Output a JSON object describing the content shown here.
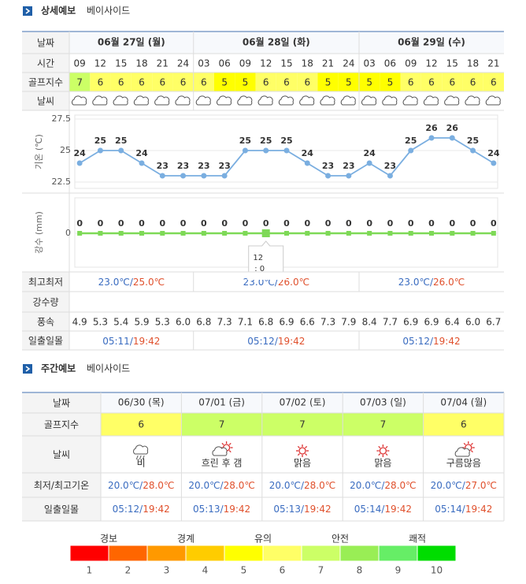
{
  "detail": {
    "title": "상세예보",
    "location": "베이사이드",
    "row_labels": {
      "date": "날짜",
      "time": "시간",
      "golf": "골프지수",
      "weather": "날씨",
      "minmax": "최고최저",
      "rain": "강수량",
      "wind": "풍속",
      "sun": "일출일몰"
    },
    "days": [
      {
        "date": "06월 27일 (월)",
        "times": [
          "09",
          "12",
          "15",
          "18",
          "21",
          "24"
        ],
        "golf": [
          7,
          6,
          6,
          6,
          6,
          6
        ],
        "wind": [
          "4.9",
          "5.3",
          "5.4",
          "5.9",
          "5.3",
          "6.0"
        ],
        "min": "23.0℃/",
        "max": "25.0℃",
        "rise": "05:11/",
        "set": "19:42"
      },
      {
        "date": "06월 28일 (화)",
        "times": [
          "03",
          "06",
          "09",
          "12",
          "15",
          "18",
          "21",
          "24"
        ],
        "golf": [
          6,
          5,
          5,
          6,
          6,
          6,
          5,
          5
        ],
        "wind": [
          "6.8",
          "7.3",
          "7.1",
          "6.8",
          "6.9",
          "6.6",
          "7.3",
          "7.9"
        ],
        "min": "23.0℃/",
        "max": "26.0℃",
        "rise": "05:12/",
        "set": "19:42"
      },
      {
        "date": "06월 29일 (수)",
        "times": [
          "03",
          "06",
          "09",
          "12",
          "15",
          "18",
          "21"
        ],
        "golf": [
          5,
          5,
          6,
          6,
          6,
          6,
          6
        ],
        "wind": [
          "8.4",
          "7.7",
          "6.9",
          "6.9",
          "6.4",
          "6.0",
          "6.7"
        ],
        "min": "23.0℃/",
        "max": "26.0℃",
        "rise": "05:12/",
        "set": "19:42"
      }
    ]
  },
  "chart_data": [
    {
      "type": "line",
      "y_label": "기온 (℃)",
      "ylim": [
        22.5,
        27.5
      ],
      "yticks": [
        22.5,
        25,
        27.5
      ],
      "color": "#7aaee0",
      "values": [
        24,
        25,
        25,
        24,
        23,
        23,
        23,
        23,
        25,
        25,
        25,
        24,
        23,
        23,
        24,
        23,
        25,
        26,
        26,
        25,
        24
      ]
    },
    {
      "type": "line",
      "y_label": "강수 (mm)",
      "ylim": [
        0,
        1
      ],
      "yticks": [
        0
      ],
      "color": "#7ed957",
      "values": [
        0,
        0,
        0,
        0,
        0,
        0,
        0,
        0,
        0,
        0,
        0,
        0,
        0,
        0,
        0,
        0,
        0,
        0,
        0,
        0,
        0
      ],
      "tooltip": {
        "label": "12",
        "text": ": 0"
      }
    }
  ],
  "weekly": {
    "title": "주간예보",
    "location": "베이사이드",
    "row_labels": {
      "date": "날짜",
      "golf": "골프지수",
      "weather": "날씨",
      "temp": "최저/최고기온",
      "sun": "일출일몰"
    },
    "days": [
      {
        "date": "06/30 (목)",
        "golf": 6,
        "weather": "비",
        "min": "20.0℃/",
        "max": "28.0℃",
        "rise": "05:12/",
        "set": "19:42"
      },
      {
        "date": "07/01 (금)",
        "golf": 7,
        "weather": "흐린 후 갬",
        "min": "20.0℃/",
        "max": "28.0℃",
        "rise": "05:13/",
        "set": "19:42"
      },
      {
        "date": "07/02 (토)",
        "golf": 7,
        "weather": "맑음",
        "min": "20.0℃/",
        "max": "28.0℃",
        "rise": "05:13/",
        "set": "19:42"
      },
      {
        "date": "07/03 (일)",
        "golf": 7,
        "weather": "맑음",
        "min": "20.0℃/",
        "max": "28.0℃",
        "rise": "05:14/",
        "set": "19:42"
      },
      {
        "date": "07/04 (월)",
        "golf": 6,
        "weather": "구름많음",
        "min": "20.0℃/",
        "max": "27.0℃",
        "rise": "05:14/",
        "set": "19:42"
      }
    ]
  },
  "legend": {
    "groups": [
      "경보",
      "경계",
      "유의",
      "안전",
      "쾌적"
    ],
    "levels": [
      {
        "value": 1,
        "color": "#ff0000"
      },
      {
        "value": 2,
        "color": "#ff6600"
      },
      {
        "value": 3,
        "color": "#ff9900"
      },
      {
        "value": 4,
        "color": "#ffcc00"
      },
      {
        "value": 5,
        "color": "#ffff00"
      },
      {
        "value": 6,
        "color": "#ffff66"
      },
      {
        "value": 7,
        "color": "#ccff66"
      },
      {
        "value": 8,
        "color": "#99ee55"
      },
      {
        "value": 9,
        "color": "#66ee66"
      },
      {
        "value": 10,
        "color": "#00dd00"
      }
    ]
  }
}
